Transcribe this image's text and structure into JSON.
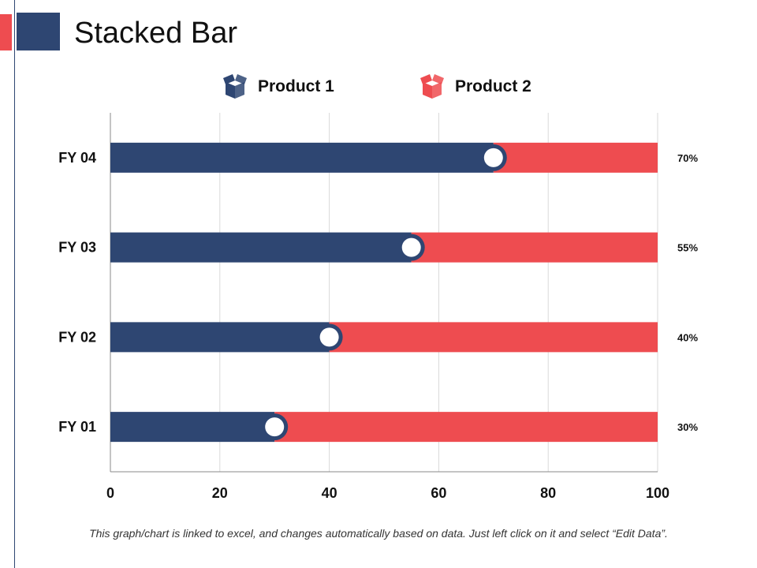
{
  "header": {
    "title": "Stacked Bar"
  },
  "colors": {
    "accent_red": "#ee4c50",
    "navy": "#2e4672",
    "red": "#ee4c50"
  },
  "legend": {
    "items": [
      {
        "label": "Product 1",
        "icon": "box-icon",
        "color": "#2e4672"
      },
      {
        "label": "Product 2",
        "icon": "box-icon",
        "color": "#ee4c50"
      }
    ]
  },
  "chart_data": {
    "type": "bar",
    "orientation": "horizontal",
    "stacked": true,
    "categories": [
      "FY 01",
      "FY 02",
      "FY 03",
      "FY 04"
    ],
    "series": [
      {
        "name": "Product 1",
        "values": [
          30,
          40,
          55,
          70
        ],
        "color": "#2e4672"
      },
      {
        "name": "Product 2",
        "values": [
          70,
          60,
          45,
          30
        ],
        "color": "#ee4c50"
      }
    ],
    "data_labels": [
      "30%",
      "40%",
      "55%",
      "70%"
    ],
    "xlim": [
      0,
      100
    ],
    "xticks": [
      "0",
      "20",
      "40",
      "60",
      "80",
      "100"
    ],
    "grid": true,
    "legend_position": "top"
  },
  "footnote": "This graph/chart is linked to excel, and changes automatically based on data. Just left click on it and select “Edit Data”."
}
